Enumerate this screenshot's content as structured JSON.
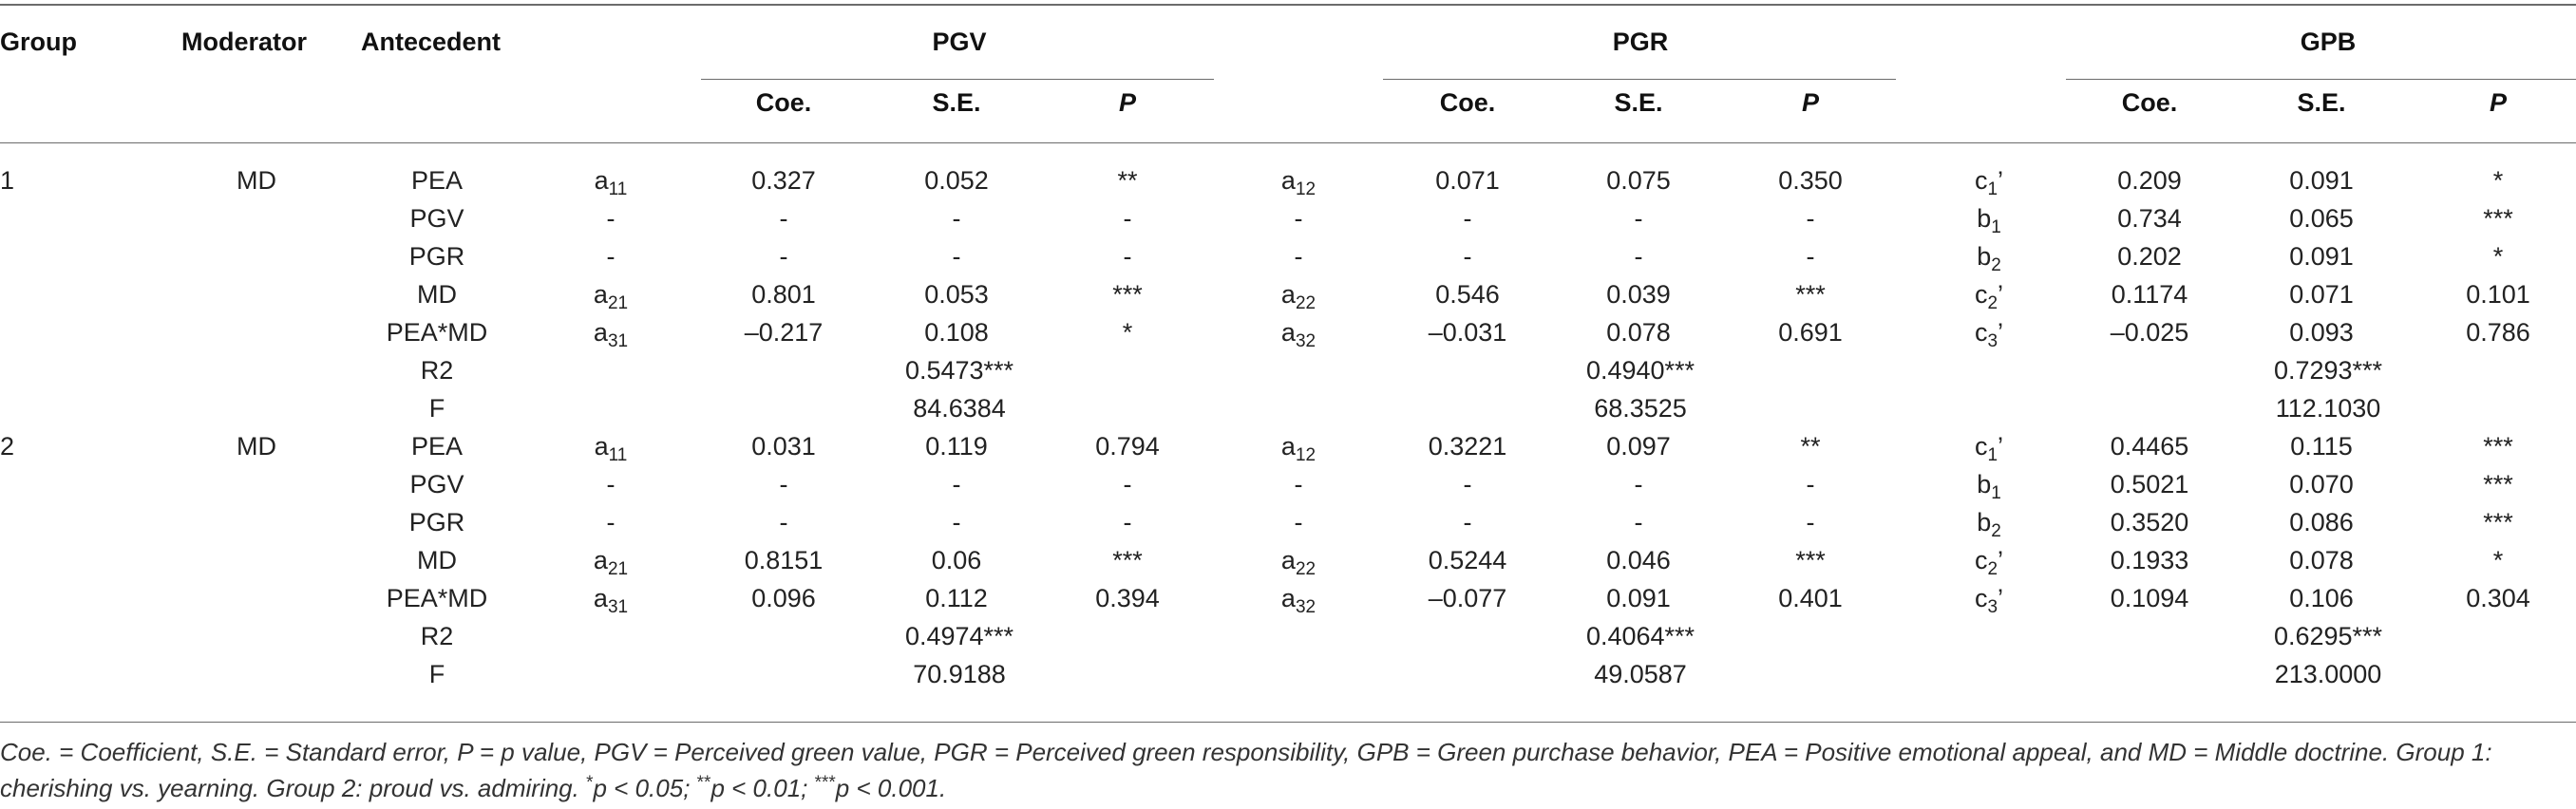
{
  "header": {
    "group": "Group",
    "moderator": "Moderator",
    "antecedent": "Antecedent",
    "outcomes": [
      "PGV",
      "PGR",
      "GPB"
    ],
    "stats": [
      "Coe.",
      "S.E.",
      "P"
    ]
  },
  "groups": [
    {
      "group": "1",
      "moderator": "MD",
      "rows": [
        {
          "ant": "PEA",
          "sym": [
            [
              "a",
              "11",
              ""
            ],
            [
              "a",
              "12",
              ""
            ],
            [
              "c",
              "1",
              "’"
            ]
          ],
          "vals": [
            "0.327",
            "0.052",
            "**",
            "0.071",
            "0.075",
            "0.350",
            "0.209",
            "0.091",
            "*"
          ]
        },
        {
          "ant": "PGV",
          "sym": [
            [
              "-",
              "",
              ""
            ],
            [
              "-",
              "",
              ""
            ],
            [
              "b",
              "1",
              ""
            ]
          ],
          "vals": [
            "-",
            "-",
            "-",
            "-",
            "-",
            "-",
            "0.734",
            "0.065",
            "***"
          ]
        },
        {
          "ant": "PGR",
          "sym": [
            [
              "-",
              "",
              ""
            ],
            [
              "-",
              "",
              ""
            ],
            [
              "b",
              "2",
              ""
            ]
          ],
          "vals": [
            "-",
            "-",
            "-",
            "-",
            "-",
            "-",
            "0.202",
            "0.091",
            "*"
          ]
        },
        {
          "ant": "MD",
          "sym": [
            [
              "a",
              "21",
              ""
            ],
            [
              "a",
              "22",
              ""
            ],
            [
              "c",
              "2",
              "’"
            ]
          ],
          "vals": [
            "0.801",
            "0.053",
            "***",
            "0.546",
            "0.039",
            "***",
            "0.1174",
            "0.071",
            "0.101"
          ]
        },
        {
          "ant": "PEA*MD",
          "sym": [
            [
              "a",
              "31",
              ""
            ],
            [
              "a",
              "32",
              ""
            ],
            [
              "c",
              "3",
              "’"
            ]
          ],
          "vals": [
            "–0.217",
            "0.108",
            "*",
            "–0.031",
            "0.078",
            "0.691",
            "–0.025",
            "0.093",
            "0.786"
          ]
        }
      ],
      "r2_label": "R2",
      "r2": [
        "0.5473***",
        "0.4940***",
        "0.7293***"
      ],
      "f_label": "F",
      "f": [
        "84.6384",
        "68.3525",
        "112.1030"
      ]
    },
    {
      "group": "2",
      "moderator": "MD",
      "rows": [
        {
          "ant": "PEA",
          "sym": [
            [
              "a",
              "11",
              ""
            ],
            [
              "a",
              "12",
              ""
            ],
            [
              "c",
              "1",
              "’"
            ]
          ],
          "vals": [
            "0.031",
            "0.119",
            "0.794",
            "0.3221",
            "0.097",
            "**",
            "0.4465",
            "0.115",
            "***"
          ]
        },
        {
          "ant": "PGV",
          "sym": [
            [
              "-",
              "",
              ""
            ],
            [
              "-",
              "",
              ""
            ],
            [
              "b",
              "1",
              ""
            ]
          ],
          "vals": [
            "-",
            "-",
            "-",
            "-",
            "-",
            "-",
            "0.5021",
            "0.070",
            "***"
          ]
        },
        {
          "ant": "PGR",
          "sym": [
            [
              "-",
              "",
              ""
            ],
            [
              "-",
              "",
              ""
            ],
            [
              "b",
              "2",
              ""
            ]
          ],
          "vals": [
            "-",
            "-",
            "-",
            "-",
            "-",
            "-",
            "0.3520",
            "0.086",
            "***"
          ]
        },
        {
          "ant": "MD",
          "sym": [
            [
              "a",
              "21",
              ""
            ],
            [
              "a",
              "22",
              ""
            ],
            [
              "c",
              "2",
              "’"
            ]
          ],
          "vals": [
            "0.8151",
            "0.06",
            "***",
            "0.5244",
            "0.046",
            "***",
            "0.1933",
            "0.078",
            "*"
          ]
        },
        {
          "ant": "PEA*MD",
          "sym": [
            [
              "a",
              "31",
              ""
            ],
            [
              "a",
              "32",
              ""
            ],
            [
              "c",
              "3",
              "’"
            ]
          ],
          "vals": [
            "0.096",
            "0.112",
            "0.394",
            "–0.077",
            "0.091",
            "0.401",
            "0.1094",
            "0.106",
            "0.304"
          ]
        }
      ],
      "r2_label": "R2",
      "r2": [
        "0.4974***",
        "0.4064***",
        "0.6295***"
      ],
      "f_label": "F",
      "f": [
        "70.9188",
        "49.0587",
        "213.0000"
      ]
    }
  ],
  "footnote": {
    "line1": "Coe. = Coefficient, S.E. = Standard error, P = p value, PGV = Perceived green value, PGR = Perceived green responsibility, GPB = Green purchase behavior, PEA = Positive emotional appeal, and MD = Middle doctrine. Group 1:",
    "line2_a": "cherishing vs. yearning. Group 2: proud vs. admiring. ",
    "line2_s1": "*",
    "line2_p1": "p < 0.05; ",
    "line2_s2": "**",
    "line2_p2": "p < 0.01; ",
    "line2_s3": "***",
    "line2_p3": "p < 0.001."
  }
}
